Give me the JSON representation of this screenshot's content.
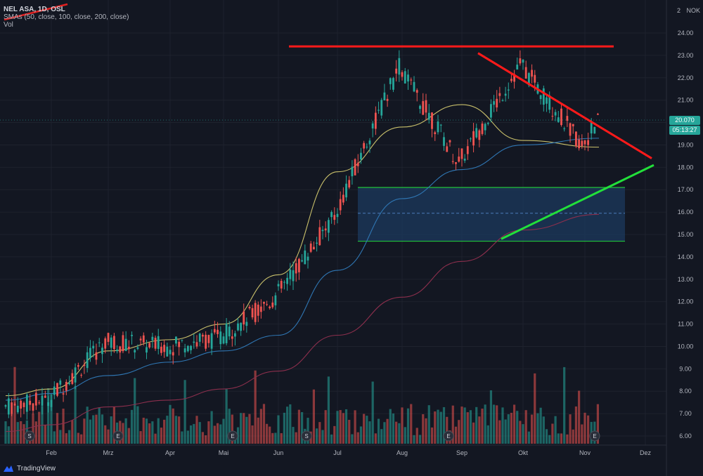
{
  "legend": {
    "symbol": "NEL ASA, 1D, OSL",
    "indicator": "SMAs (50, close, 100, close, 200, close)",
    "volume": "Vol"
  },
  "axis_header": {
    "top_value": "2",
    "currency": "NOK"
  },
  "last_price": {
    "price": "20.070",
    "countdown": "05:13:27"
  },
  "brand": {
    "name": "TradingView"
  },
  "colors": {
    "background": "#131722",
    "grid": "#1e222d",
    "up": "#26a69a",
    "down": "#ef5350",
    "sma50": "#c9c06b",
    "sma100": "#2f76b3",
    "sma200": "#8c2f4d",
    "resistance": "#ff1a1a",
    "support": "#22e03a",
    "zone_fill": "#1c3a5e",
    "zone_border": "#22c33a"
  },
  "chart_data": {
    "type": "candlestick",
    "ylim": [
      5.8,
      24.8
    ],
    "y_ticks": [
      "6.00",
      "7.00",
      "8.00",
      "9.00",
      "10.00",
      "11.00",
      "12.00",
      "13.00",
      "14.00",
      "15.00",
      "16.00",
      "17.00",
      "18.00",
      "19.00",
      "20.00",
      "21.00",
      "22.00",
      "23.00",
      "24.00"
    ],
    "x_ticks": [
      "Feb",
      "Mrz",
      "Apr",
      "Mai",
      "Jun",
      "Jul",
      "Aug",
      "Sep",
      "Okt",
      "Nov",
      "Dez"
    ],
    "series": [
      {
        "name": "SMA 50",
        "points": [
          [
            "Jan",
            7.8
          ],
          [
            "Feb",
            8.1
          ],
          [
            "Mrz",
            9.8
          ],
          [
            "Apr",
            10.3
          ],
          [
            "Mai",
            11.0
          ],
          [
            "Jun",
            13.2
          ],
          [
            "Jul",
            17.8
          ],
          [
            "Aug",
            19.8
          ],
          [
            "Sep",
            20.8
          ],
          [
            "Okt",
            19.2
          ],
          [
            "Nov",
            18.9
          ]
        ]
      },
      {
        "name": "SMA 100",
        "points": [
          [
            "Jan",
            7.6
          ],
          [
            "Feb",
            7.9
          ],
          [
            "Mrz",
            8.7
          ],
          [
            "Apr",
            9.3
          ],
          [
            "Mai",
            9.8
          ],
          [
            "Jun",
            10.5
          ],
          [
            "Jul",
            13.4
          ],
          [
            "Aug",
            16.6
          ],
          [
            "Sep",
            17.9
          ],
          [
            "Okt",
            19.0
          ],
          [
            "Nov",
            19.3
          ]
        ]
      },
      {
        "name": "SMA 200",
        "points": [
          [
            "Jan",
            6.2
          ],
          [
            "Feb",
            6.5
          ],
          [
            "Mrz",
            7.3
          ],
          [
            "Apr",
            7.6
          ],
          [
            "Mai",
            8.1
          ],
          [
            "Jun",
            8.9
          ],
          [
            "Jul",
            10.5
          ],
          [
            "Aug",
            12.2
          ],
          [
            "Sep",
            13.8
          ],
          [
            "Okt",
            15.2
          ],
          [
            "Nov",
            15.9
          ]
        ]
      }
    ],
    "annotations": {
      "resistance": 23.4,
      "zone": [
        14.7,
        17.1
      ],
      "zone_mid": 15.95,
      "upper_trendline": [
        [
          "Sep",
          23.1
        ],
        [
          "Dez",
          18.4
        ]
      ],
      "lower_trendline": [
        [
          "Sep",
          14.8
        ],
        [
          "Dez",
          18.1
        ]
      ]
    },
    "events": [
      {
        "label": "S",
        "at": "Jan"
      },
      {
        "label": "E",
        "at": "Mrz"
      },
      {
        "label": "E",
        "at": "Mai"
      },
      {
        "label": "S",
        "at": "Jun"
      },
      {
        "label": "S",
        "at": "Jul"
      },
      {
        "label": "E",
        "at": "Sep"
      },
      {
        "label": "E",
        "at": "Nov"
      }
    ],
    "last": 20.07
  }
}
